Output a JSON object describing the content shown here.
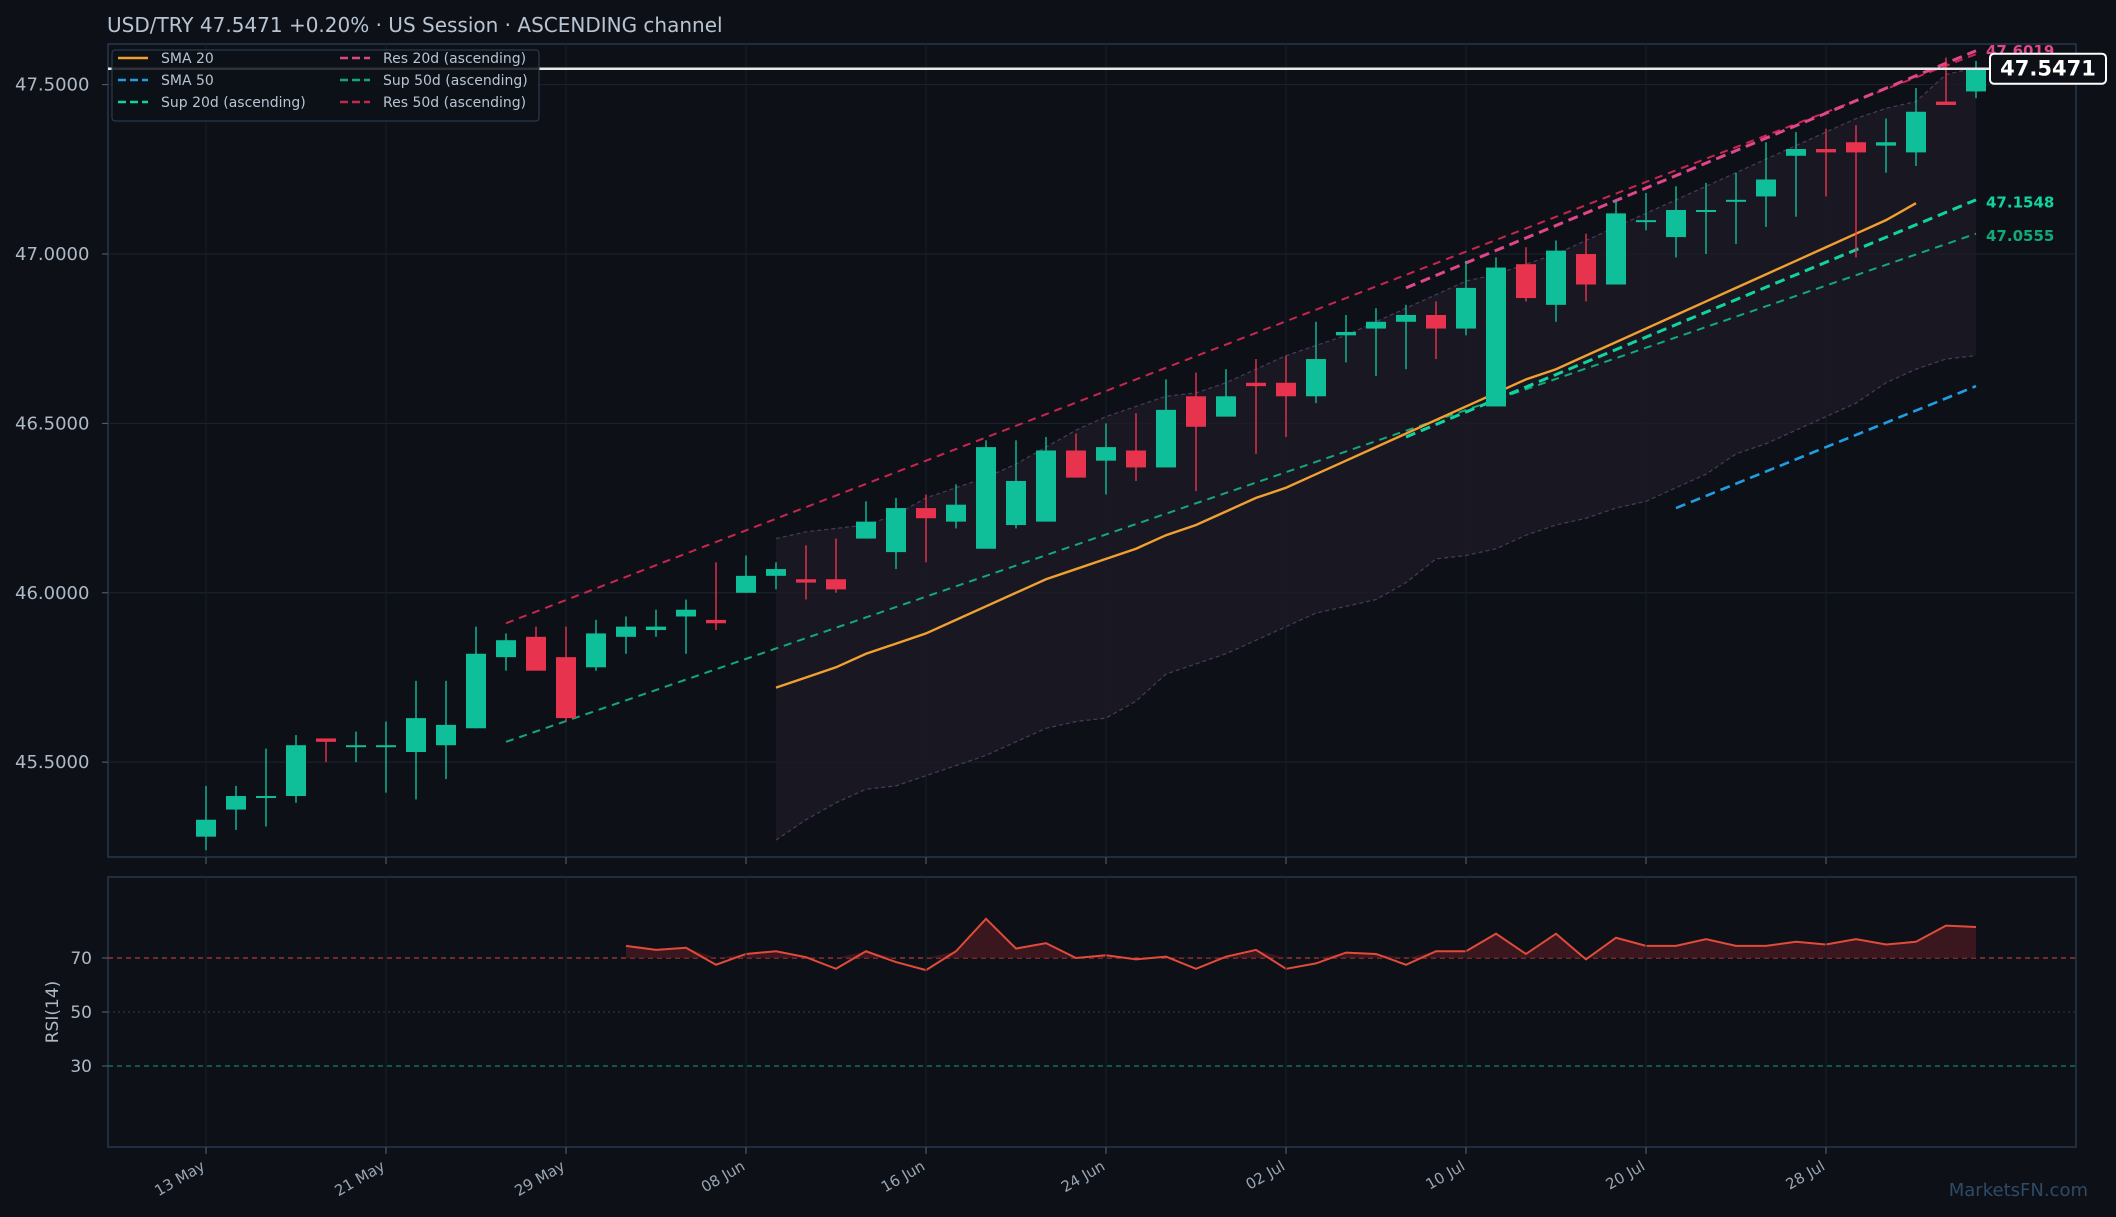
{
  "header": {
    "title": "USD/TRY   47.5471   +0.20%  ·  US Session  ·  ASCENDING channel"
  },
  "colors": {
    "background": "#0d1117",
    "panel_border": "#25384f",
    "bull": "#0fbf9a",
    "bear": "#e8334f",
    "sma20": "#f0a030",
    "sma50": "#1f9ee6",
    "sup20": "#10d4a0",
    "sup50": "#12a878",
    "res20": "#e0468a",
    "res50": "#c8264e",
    "rsi": "#e24a3a",
    "price_line": "#e8e8e8"
  },
  "legend": [
    {
      "label": "SMA 20",
      "color": "#f0a030",
      "dash": "solid"
    },
    {
      "label": "SMA 50",
      "color": "#1f9ee6",
      "dash": "dashed"
    },
    {
      "label": "Sup 20d (ascending)",
      "color": "#10d4a0",
      "dash": "dashed"
    },
    {
      "label": "Res 20d (ascending)",
      "color": "#e0468a",
      "dash": "dashed"
    },
    {
      "label": "Sup 50d (ascending)",
      "color": "#12a878",
      "dash": "dashed"
    },
    {
      "label": "Res 50d (ascending)",
      "color": "#c8264e",
      "dash": "dashed"
    }
  ],
  "edge_labels": [
    {
      "text": "47.6019",
      "value": 47.6019,
      "color": "#e0468a"
    },
    {
      "text": "47.1548",
      "value": 47.1548,
      "color": "#10d4a0"
    },
    {
      "text": "47.0555",
      "value": 47.0555,
      "color": "#12a878"
    }
  ],
  "last_price_label": "47.5471",
  "watermark": "MarketsFN.com",
  "rsi_panel": {
    "ylabel": "RSI(14)",
    "levels": [
      70,
      50,
      30
    ],
    "level_labels": [
      "70",
      "50",
      "30"
    ],
    "ylim": [
      0,
      100
    ]
  },
  "chart_data": {
    "type": "candlestick",
    "ylim": [
      45.22,
      47.62
    ],
    "y_ticks": [
      45.5,
      46.0,
      46.5,
      47.0,
      47.5
    ],
    "y_tick_labels": [
      "45.5000",
      "46.0000",
      "46.5000",
      "47.0000",
      "47.5000"
    ],
    "x_ticks": [
      0,
      6,
      12,
      18,
      24,
      30,
      36,
      42,
      48,
      54
    ],
    "x_tick_labels": [
      "13 May",
      "21 May",
      "29 May",
      "08 Jun",
      "16 Jun",
      "24 Jun",
      "02 Jul",
      "10 Jul",
      "20 Jul",
      "28 Jul"
    ],
    "last_price": 47.5471,
    "candles": [
      [
        45.28,
        45.33,
        45.24,
        45.43
      ],
      [
        45.36,
        45.4,
        45.3,
        45.43
      ],
      [
        45.4,
        45.4,
        45.31,
        45.54
      ],
      [
        45.4,
        45.55,
        45.38,
        45.58
      ],
      [
        45.57,
        45.56,
        45.5,
        45.57
      ],
      [
        45.55,
        45.55,
        45.5,
        45.59
      ],
      [
        45.55,
        45.55,
        45.41,
        45.62
      ],
      [
        45.53,
        45.63,
        45.39,
        45.74
      ],
      [
        45.55,
        45.61,
        45.45,
        45.74
      ],
      [
        45.6,
        45.82,
        45.6,
        45.9
      ],
      [
        45.81,
        45.86,
        45.77,
        45.88
      ],
      [
        45.87,
        45.77,
        45.77,
        45.9
      ],
      [
        45.81,
        45.63,
        45.62,
        45.9
      ],
      [
        45.78,
        45.88,
        45.77,
        45.92
      ],
      [
        45.87,
        45.9,
        45.82,
        45.93
      ],
      [
        45.89,
        45.9,
        45.87,
        45.95
      ],
      [
        45.93,
        45.95,
        45.82,
        45.98
      ],
      [
        45.92,
        45.91,
        45.89,
        46.09
      ],
      [
        46.0,
        46.05,
        46.0,
        46.11
      ],
      [
        46.05,
        46.07,
        46.01,
        46.09
      ],
      [
        46.04,
        46.03,
        45.98,
        46.14
      ],
      [
        46.04,
        46.01,
        46.0,
        46.16
      ],
      [
        46.16,
        46.21,
        46.16,
        46.27
      ],
      [
        46.12,
        46.25,
        46.07,
        46.28
      ],
      [
        46.25,
        46.22,
        46.09,
        46.29
      ],
      [
        46.21,
        46.26,
        46.19,
        46.32
      ],
      [
        46.13,
        46.43,
        46.13,
        46.45
      ],
      [
        46.2,
        46.33,
        46.19,
        46.45
      ],
      [
        46.21,
        46.42,
        46.21,
        46.46
      ],
      [
        46.42,
        46.34,
        46.34,
        46.47
      ],
      [
        46.39,
        46.43,
        46.29,
        46.5
      ],
      [
        46.42,
        46.37,
        46.33,
        46.53
      ],
      [
        46.37,
        46.54,
        46.37,
        46.63
      ],
      [
        46.58,
        46.49,
        46.3,
        46.65
      ],
      [
        46.52,
        46.58,
        46.52,
        46.66
      ],
      [
        46.62,
        46.61,
        46.41,
        46.69
      ],
      [
        46.62,
        46.58,
        46.46,
        46.7
      ],
      [
        46.58,
        46.69,
        46.56,
        46.8
      ],
      [
        46.76,
        46.77,
        46.68,
        46.82
      ],
      [
        46.78,
        46.8,
        46.64,
        46.84
      ],
      [
        46.8,
        46.82,
        46.66,
        46.85
      ],
      [
        46.82,
        46.78,
        46.69,
        46.86
      ],
      [
        46.78,
        46.9,
        46.76,
        46.98
      ],
      [
        46.55,
        46.96,
        46.55,
        46.99
      ],
      [
        46.97,
        46.87,
        46.86,
        47.02
      ],
      [
        46.85,
        47.01,
        46.8,
        47.04
      ],
      [
        47.0,
        46.91,
        46.86,
        47.06
      ],
      [
        46.91,
        47.12,
        46.91,
        47.16
      ],
      [
        47.1,
        47.1,
        47.07,
        47.18
      ],
      [
        47.05,
        47.13,
        46.99,
        47.2
      ],
      [
        47.13,
        47.13,
        47.0,
        47.21
      ],
      [
        47.16,
        47.16,
        47.03,
        47.24
      ],
      [
        47.17,
        47.22,
        47.08,
        47.33
      ],
      [
        47.29,
        47.31,
        47.11,
        47.36
      ],
      [
        47.31,
        47.3,
        47.17,
        47.37
      ],
      [
        47.33,
        47.3,
        46.99,
        47.38
      ],
      [
        47.32,
        47.33,
        47.24,
        47.4
      ],
      [
        47.3,
        47.42,
        47.26,
        47.49
      ],
      [
        47.45,
        47.44,
        47.44,
        47.58
      ],
      [
        47.48,
        47.55,
        47.46,
        47.57
      ]
    ],
    "sma20": {
      "start": 19,
      "values": [
        45.72,
        45.75,
        45.78,
        45.82,
        45.85,
        45.88,
        45.92,
        45.96,
        46.0,
        46.04,
        46.07,
        46.1,
        46.13,
        46.17,
        46.2,
        46.24,
        46.28,
        46.31,
        46.35,
        46.39,
        46.43,
        46.47,
        46.51,
        46.55,
        46.59,
        46.63,
        46.66,
        46.7,
        46.74,
        46.78,
        46.82,
        46.86,
        46.9,
        46.94,
        46.98,
        47.02,
        47.06,
        47.1,
        47.15
      ]
    },
    "sma50": {
      "start": 49,
      "values": [
        46.25,
        46.61
      ]
    },
    "sup20d": {
      "start": 40,
      "values": [
        46.46,
        47.16
      ]
    },
    "res20d": {
      "start": 40,
      "values": [
        46.9,
        47.6
      ]
    },
    "sup50d": {
      "start": 10,
      "values": [
        45.56,
        47.06
      ]
    },
    "res50d": {
      "start": 10,
      "values": [
        45.91,
        47.59
      ]
    },
    "bb_band": {
      "start": 19,
      "upper": [
        46.16,
        46.18,
        46.19,
        46.2,
        46.23,
        46.28,
        46.31,
        46.34,
        46.38,
        46.43,
        46.48,
        46.52,
        46.55,
        46.58,
        46.59,
        46.62,
        46.66,
        46.7,
        46.73,
        46.76,
        46.8,
        46.84,
        46.88,
        46.92,
        46.94,
        46.97,
        47.0,
        47.04,
        47.08,
        47.12,
        47.16,
        47.2,
        47.24,
        47.28,
        47.32,
        47.36,
        47.4,
        47.43,
        47.45,
        47.53,
        47.55
      ],
      "lower": [
        45.27,
        45.33,
        45.38,
        45.42,
        45.43,
        45.46,
        45.49,
        45.52,
        45.56,
        45.6,
        45.62,
        45.63,
        45.68,
        45.76,
        45.79,
        45.82,
        45.86,
        45.9,
        45.94,
        45.96,
        45.98,
        46.03,
        46.1,
        46.11,
        46.13,
        46.17,
        46.2,
        46.22,
        46.25,
        46.27,
        46.31,
        46.35,
        46.41,
        46.44,
        46.48,
        46.52,
        46.56,
        46.62,
        46.66,
        46.69,
        46.7
      ]
    },
    "rsi": {
      "start": 14,
      "values": [
        74.5,
        73,
        73.8,
        67.5,
        71.5,
        72.5,
        70.3,
        66,
        72.5,
        68.5,
        65.5,
        72.5,
        84.5,
        73.5,
        75.5,
        70,
        71,
        69.5,
        70.5,
        66,
        70.5,
        73,
        66,
        68,
        72,
        71.5,
        67.5,
        72.5,
        72.5,
        79,
        71.5,
        79,
        69.5,
        77.5,
        74.5,
        74.5,
        77,
        74.5,
        74.5,
        76,
        75,
        77,
        75,
        76,
        82,
        81.5
      ]
    }
  }
}
